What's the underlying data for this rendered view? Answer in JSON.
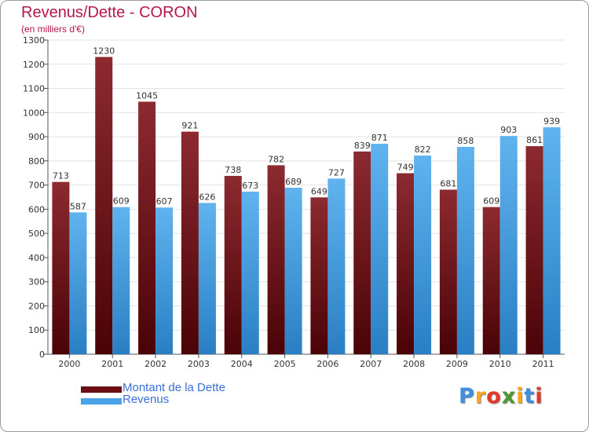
{
  "title": "Revenus/Dette - CORON",
  "subtitle": "(en milliers d'€)",
  "colors": {
    "dette": "#6b0f14",
    "revenus": "#4aa3e6",
    "title": "#b5174b",
    "legend_text": "#3b6fd6"
  },
  "chart_data": {
    "type": "bar",
    "title": "Revenus/Dette - CORON",
    "ylabel": "(en milliers d'€)",
    "xlabel": "",
    "ylim": [
      0,
      1300
    ],
    "yticks": [
      0,
      100,
      200,
      300,
      400,
      500,
      600,
      700,
      800,
      900,
      1000,
      1100,
      1200,
      1300
    ],
    "grid": true,
    "legend_position": "bottom-left",
    "categories": [
      "2000",
      "2001",
      "2002",
      "2003",
      "2004",
      "2005",
      "2006",
      "2007",
      "2008",
      "2009",
      "2010",
      "2011"
    ],
    "series": [
      {
        "name": "Montant de la Dette",
        "color": "#6b0f14",
        "values": [
          713,
          1230,
          1045,
          921,
          738,
          782,
          649,
          839,
          749,
          681,
          609,
          861
        ]
      },
      {
        "name": "Revenus",
        "color": "#4aa3e6",
        "values": [
          587,
          609,
          607,
          626,
          673,
          689,
          727,
          871,
          822,
          858,
          903,
          939
        ]
      }
    ]
  },
  "legend": {
    "items": [
      {
        "label": "Montant de la Dette",
        "color": "#6b0f14"
      },
      {
        "label": "Revenus",
        "color": "#4aa3e6"
      }
    ]
  },
  "logo": {
    "letters": [
      {
        "char": "P",
        "color": "#3f8fe0"
      },
      {
        "char": "r",
        "color": "#f5a623"
      },
      {
        "char": "o",
        "color": "#e2382c"
      },
      {
        "char": "x",
        "color": "#4a9a2e"
      },
      {
        "char": "i",
        "color": "#f5a623"
      },
      {
        "char": "t",
        "color": "#3f8fe0"
      },
      {
        "char": "i",
        "color": "#e2382c"
      }
    ]
  }
}
